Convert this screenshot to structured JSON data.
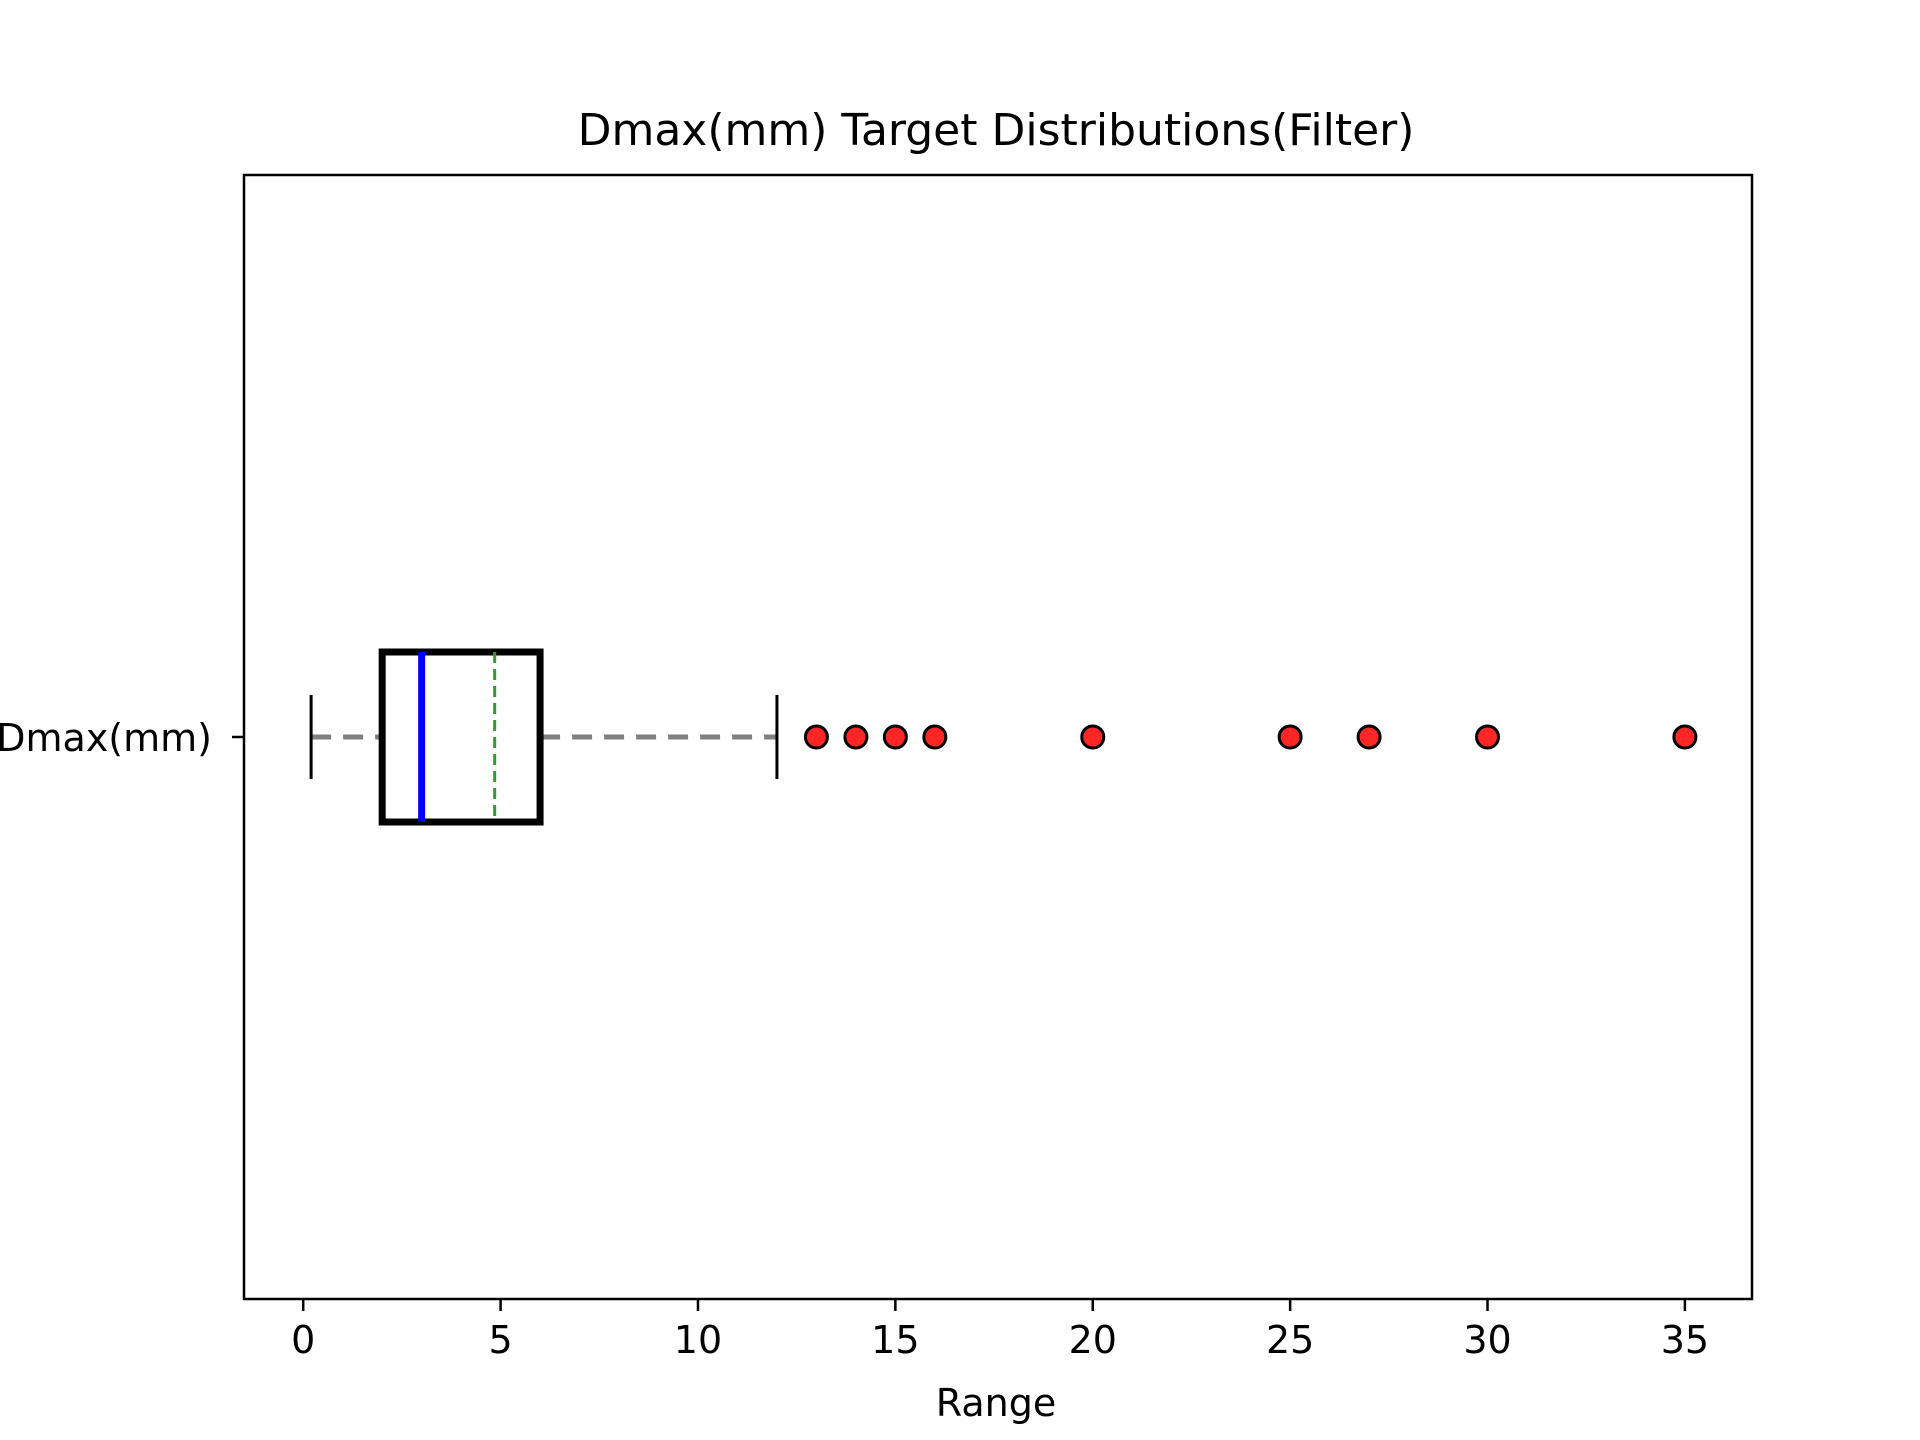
{
  "chart_data": {
    "type": "boxplot",
    "orientation": "horizontal",
    "title": "Dmax(mm) Target Distributions(Filter)",
    "xlabel": "Range",
    "ylabel": "",
    "xlim": [
      -1.5,
      36.7
    ],
    "xticks": [
      0,
      5,
      10,
      15,
      20,
      25,
      30,
      35
    ],
    "xtick_labels": [
      "0",
      "5",
      "10",
      "15",
      "20",
      "25",
      "30",
      "35"
    ],
    "grid": false,
    "series": [
      {
        "name": "Dmax(mm)",
        "whisker_low": 0.2,
        "q1": 2.0,
        "median": 3.0,
        "mean": 4.85,
        "q3": 6.0,
        "whisker_high": 12.0,
        "outliers": [
          13,
          14,
          15,
          16,
          20,
          25,
          27,
          30,
          35
        ]
      }
    ],
    "colors": {
      "box": "#000000",
      "median": "#0000ff",
      "mean": "#2ca02c",
      "whisker": "#808080",
      "cap": "#000000",
      "outlier_fill": "#ff0000",
      "outlier_edge": "#000000"
    }
  }
}
